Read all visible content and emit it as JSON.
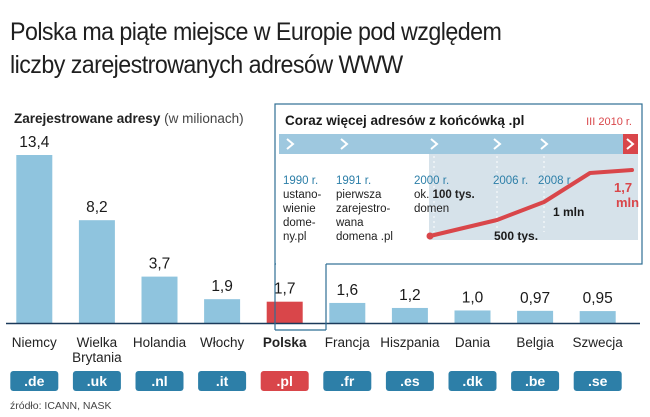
{
  "title_line1": "Polska ma piąte miejsce w Europie pod względem",
  "title_line2": "liczby zarejestrowanych adresów WWW",
  "ylabel_main": "Zarejestrowane adresy",
  "ylabel_unit": "(w milionach)",
  "source": "źródło: ICANN, NASK",
  "colors": {
    "bar": "#8fc4de",
    "highlight": "#d9464a",
    "badge": "#2d7fa8",
    "axis": "#1b3a5a"
  },
  "chart_data": {
    "type": "bar",
    "title": "",
    "ylabel": "Zarejestrowane adresy (w milionach)",
    "categories": [
      "Niemcy",
      "Wielka Brytania",
      "Holandia",
      "Włochy",
      "Polska",
      "Francja",
      "Hiszpania",
      "Dania",
      "Belgia",
      "Szwecja"
    ],
    "category_lines": [
      [
        "Niemcy"
      ],
      [
        "Wielka",
        "Brytania"
      ],
      [
        "Holandia"
      ],
      [
        "Włochy"
      ],
      [
        "Polska"
      ],
      [
        "Francja"
      ],
      [
        "Hiszpania"
      ],
      [
        "Dania"
      ],
      [
        "Belgia"
      ],
      [
        "Szwecja"
      ]
    ],
    "domains": [
      ".de",
      ".uk",
      ".nl",
      ".it",
      ".pl",
      ".fr",
      ".es",
      ".dk",
      ".be",
      ".se"
    ],
    "values": [
      13.4,
      8.2,
      3.7,
      1.9,
      1.7,
      1.6,
      1.2,
      1.0,
      0.97,
      0.95
    ],
    "value_labels": [
      "13,4",
      "8,2",
      "3,7",
      "1,9",
      "1,7",
      "1,6",
      "1,2",
      "1,0",
      "0,97",
      "0,95"
    ],
    "highlight": "Polska",
    "ylim": [
      0,
      13.4
    ]
  },
  "inset": {
    "title": "Coraz więcej adresów z końcówką .pl",
    "end_label": "III 2010 r.",
    "events": [
      {
        "year": "1990 r.",
        "text": [
          "ustano-",
          "wienie",
          "dome-",
          "ny.pl"
        ]
      },
      {
        "year": "1991 r.",
        "text": [
          "pierwsza",
          "zarejestro-",
          "wana",
          "domena .pl"
        ]
      },
      {
        "year": "2000 r.",
        "text": [
          "ok. 100 tys.",
          "domen"
        ]
      },
      {
        "year": "2006 r.",
        "text": []
      },
      {
        "year": "2008 r.",
        "text": []
      }
    ],
    "growth_labels": [
      "500 tys.",
      "1 mln",
      "1,7",
      "mln"
    ],
    "chart_data": {
      "type": "line",
      "x": [
        "2000",
        "2006",
        "2008",
        "III 2010"
      ],
      "y": [
        0.1,
        0.5,
        1.0,
        1.7
      ],
      "unit": "mln"
    }
  }
}
